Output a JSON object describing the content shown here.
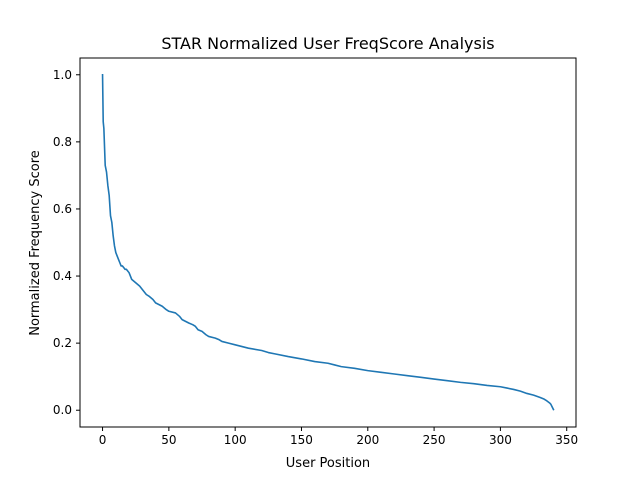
{
  "chart_data": {
    "type": "line",
    "title": "STAR Normalized User FreqScore Analysis",
    "xlabel": "User Position",
    "ylabel": "Normalized Frequency Score",
    "xlim": [
      -17,
      357
    ],
    "ylim": [
      -0.05,
      1.05
    ],
    "xticks": [
      0,
      50,
      100,
      150,
      200,
      250,
      300,
      350
    ],
    "xtick_labels": [
      "0",
      "50",
      "100",
      "150",
      "200",
      "250",
      "300",
      "350"
    ],
    "yticks": [
      0.0,
      0.2,
      0.4,
      0.6,
      0.8,
      1.0
    ],
    "ytick_labels": [
      "0.0",
      "0.2",
      "0.4",
      "0.6",
      "0.8",
      "1.0"
    ],
    "grid": false,
    "series": [
      {
        "color": "#1f77b4",
        "x": [
          0,
          0.5,
          1,
          2,
          3,
          4,
          5,
          6,
          7,
          8,
          9,
          10,
          11,
          12,
          13,
          14,
          15,
          16,
          17,
          18,
          20,
          22,
          25,
          28,
          30,
          33,
          35,
          38,
          40,
          45,
          48,
          50,
          55,
          58,
          60,
          65,
          68,
          70,
          72,
          75,
          78,
          80,
          85,
          88,
          90,
          95,
          100,
          110,
          120,
          125,
          130,
          140,
          150,
          160,
          170,
          175,
          180,
          190,
          200,
          210,
          220,
          230,
          240,
          250,
          260,
          270,
          280,
          290,
          300,
          305,
          310,
          315,
          320,
          325,
          330,
          333,
          335,
          337,
          338,
          339,
          340
        ],
        "y": [
          1.0,
          0.86,
          0.84,
          0.73,
          0.71,
          0.67,
          0.64,
          0.58,
          0.56,
          0.52,
          0.49,
          0.47,
          0.46,
          0.45,
          0.44,
          0.43,
          0.43,
          0.425,
          0.42,
          0.42,
          0.41,
          0.39,
          0.38,
          0.37,
          0.36,
          0.345,
          0.34,
          0.33,
          0.32,
          0.31,
          0.3,
          0.295,
          0.29,
          0.28,
          0.27,
          0.26,
          0.255,
          0.25,
          0.24,
          0.235,
          0.225,
          0.22,
          0.215,
          0.21,
          0.205,
          0.2,
          0.195,
          0.185,
          0.178,
          0.172,
          0.168,
          0.16,
          0.153,
          0.145,
          0.14,
          0.135,
          0.13,
          0.125,
          0.118,
          0.113,
          0.108,
          0.103,
          0.098,
          0.093,
          0.088,
          0.083,
          0.079,
          0.074,
          0.07,
          0.066,
          0.062,
          0.057,
          0.05,
          0.045,
          0.038,
          0.033,
          0.028,
          0.022,
          0.018,
          0.01,
          0.002
        ]
      }
    ]
  }
}
